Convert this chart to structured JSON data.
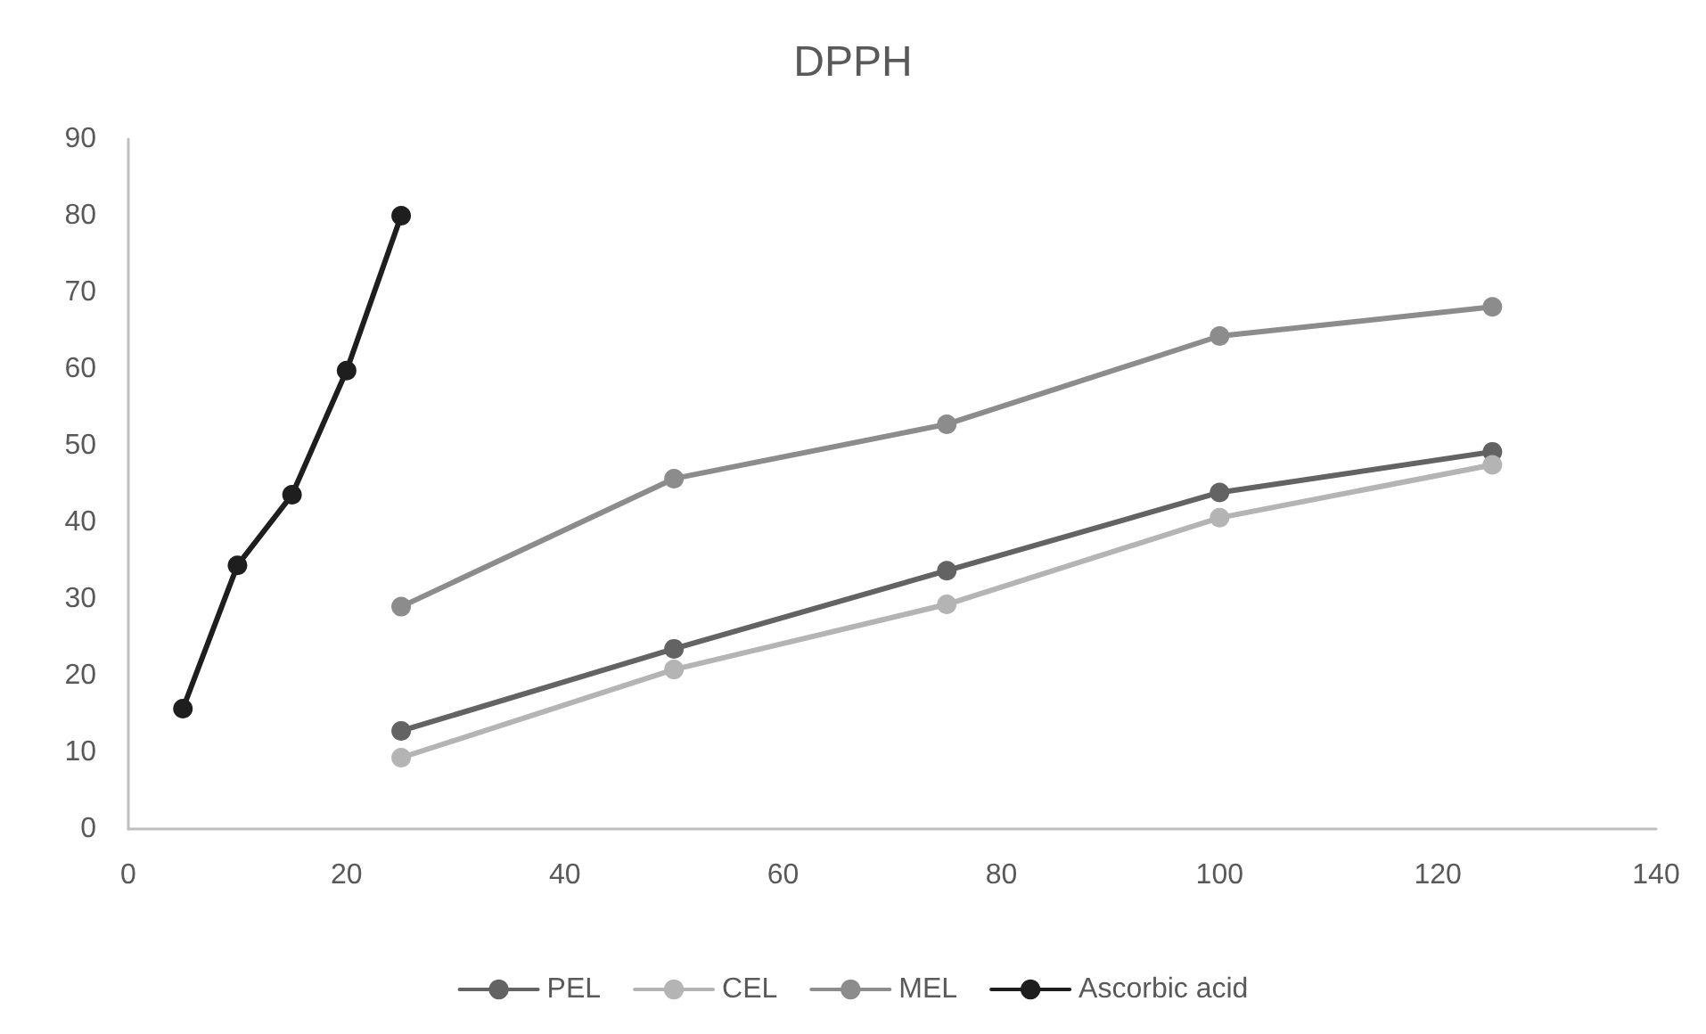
{
  "chart_data": {
    "type": "line",
    "title": "DPPH",
    "xlim": [
      0,
      140
    ],
    "xticks": [
      0,
      20,
      40,
      60,
      80,
      100,
      120,
      140
    ],
    "ylim": [
      0,
      90
    ],
    "yticks": [
      0,
      10,
      20,
      30,
      40,
      50,
      60,
      70,
      80,
      90
    ],
    "grid": false,
    "legend": "bottom",
    "marker": "circle",
    "line_style": "solid",
    "series": [
      {
        "name": "PEL",
        "color": "#636363",
        "x": [
          25,
          50,
          75,
          100,
          125
        ],
        "values": [
          12.8,
          23.5,
          33.7,
          43.9,
          49.2
        ]
      },
      {
        "name": "CEL",
        "color": "#b4b4b4",
        "x": [
          25,
          50,
          75,
          100,
          125
        ],
        "values": [
          9.3,
          20.8,
          29.3,
          40.6,
          47.5
        ]
      },
      {
        "name": "MEL",
        "color": "#8c8c8c",
        "x": [
          25,
          50,
          75,
          100,
          125
        ],
        "values": [
          29,
          45.7,
          52.8,
          64.3,
          68.1
        ]
      },
      {
        "name": "Ascorbic acid",
        "color": "#1e1e1e",
        "x": [
          5,
          10,
          15,
          20,
          25
        ],
        "values": [
          15.7,
          34.4,
          43.6,
          59.8,
          80
        ]
      }
    ]
  }
}
